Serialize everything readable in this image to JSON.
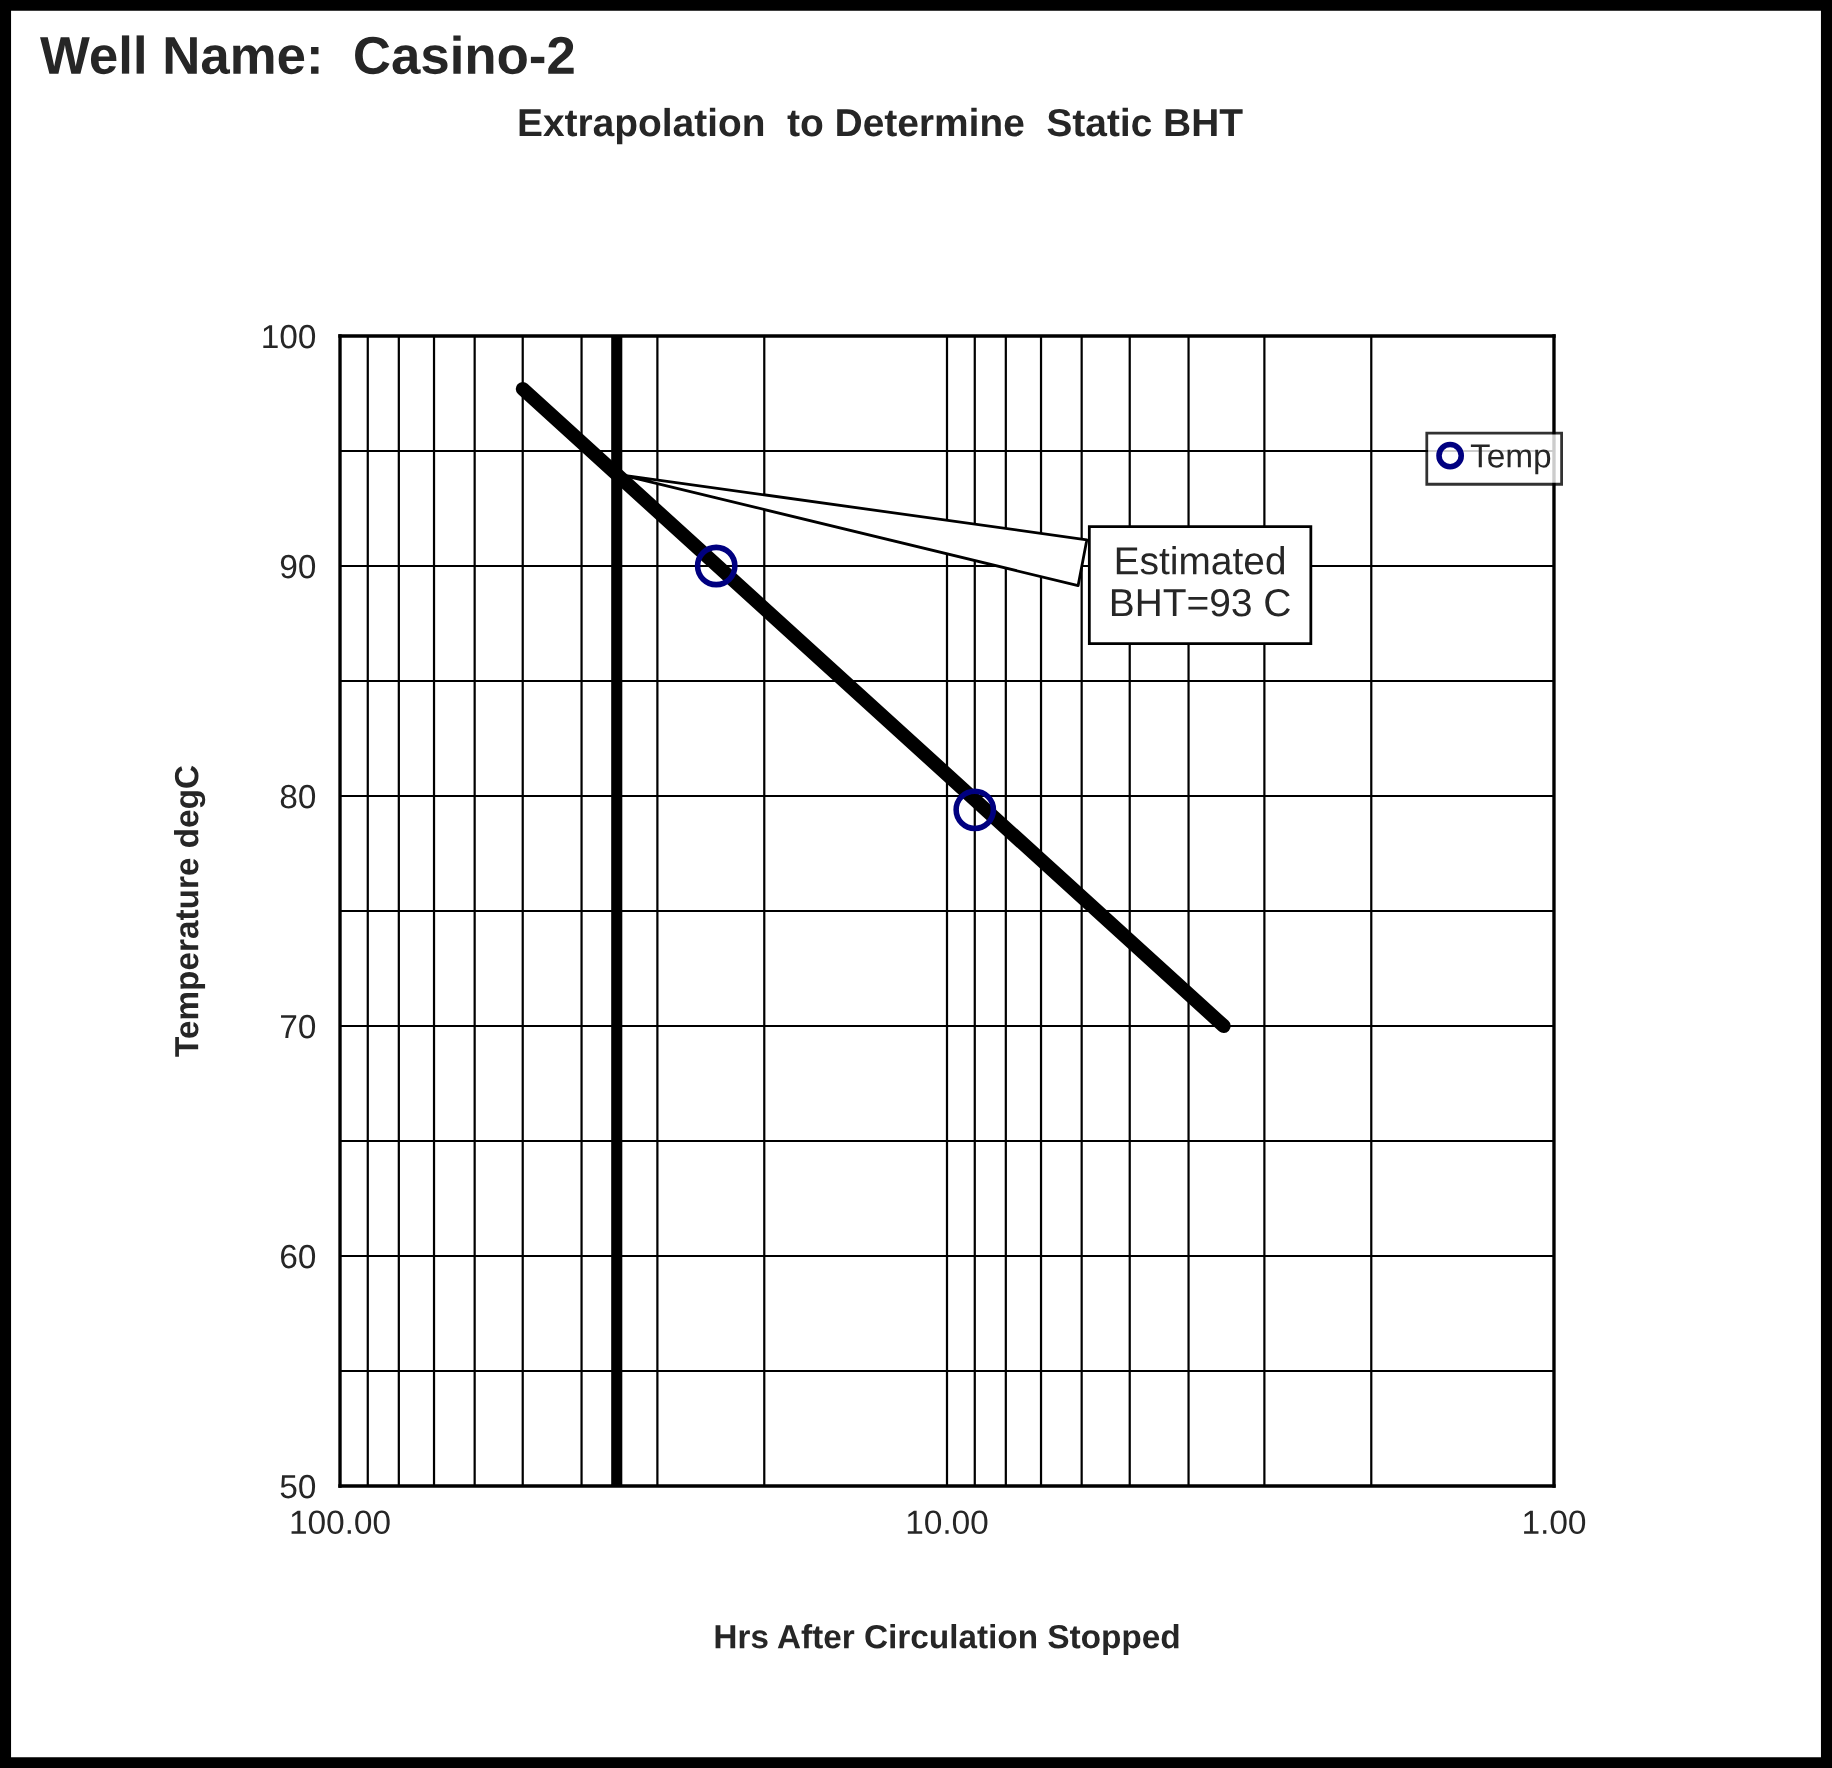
{
  "chart_data": {
    "type": "scatter",
    "title": "Well Name:  Casino-2",
    "subtitle": "Extrapolation  to Determine  Static BHT",
    "xlabel": "Hrs After Circulation Stopped",
    "ylabel": "Temperature degC",
    "log": "x",
    "xlim": [
      100,
      1
    ],
    "ylim": [
      50,
      100
    ],
    "xticks": [
      {
        "value": 100,
        "label": "100.00"
      },
      {
        "value": 10,
        "label": "10.00"
      },
      {
        "value": 1,
        "label": "1.00"
      }
    ],
    "yticks": [
      50,
      60,
      70,
      80,
      90,
      100
    ],
    "grid": true,
    "legend": "top right",
    "series": [
      {
        "name": "Temp",
        "marker": "circle",
        "color": "#000080",
        "x": [
          24,
          9
        ],
        "values": [
          90,
          79.4
        ]
      },
      {
        "type": "line",
        "color": "#000000",
        "x": [
          50,
          3.5
        ],
        "values": [
          97.7,
          70
        ]
      }
    ],
    "ref_lines": [
      {
        "axis": "x",
        "value": 35,
        "color": "#000000"
      }
    ],
    "annotations": [
      {
        "text": "Estimated\nBHT=93 C",
        "x": 35,
        "y": 94
      }
    ]
  }
}
